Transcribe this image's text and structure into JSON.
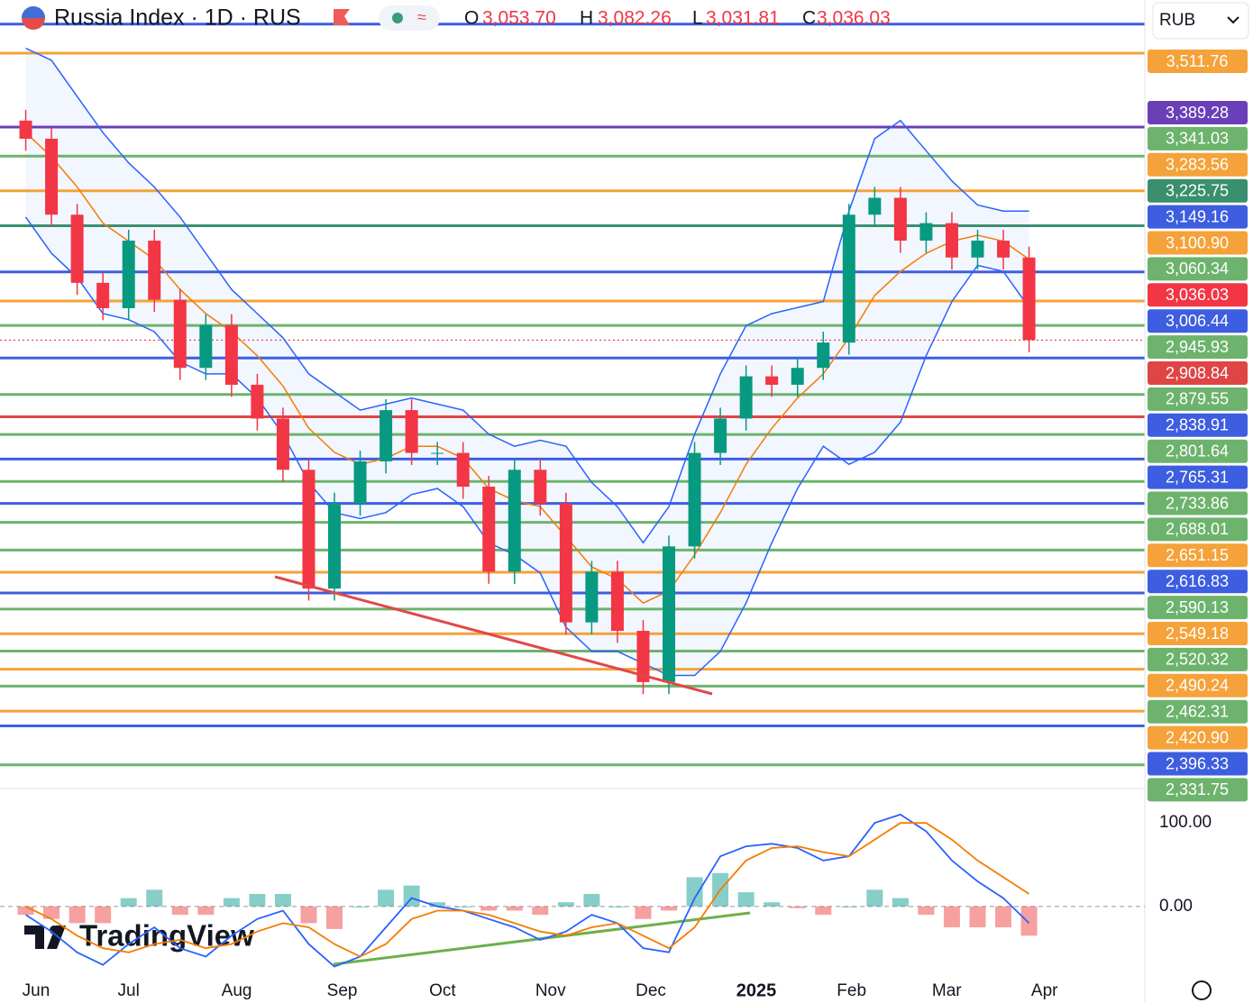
{
  "header": {
    "title": "Russia Index · 1D · RUS",
    "ohlc": [
      {
        "key": "O",
        "value": 3053.7,
        "label": "3,053.70"
      },
      {
        "key": "H",
        "value": 3082.26,
        "label": "3,082.26"
      },
      {
        "key": "L",
        "value": 3031.81,
        "label": "3,031.81"
      },
      {
        "key": "C",
        "value": 3036.03,
        "label": "3,036.03"
      }
    ],
    "currency": "RUB",
    "logo": "TradingView"
  },
  "chart_data": {
    "type": "candlestick",
    "xlim": [
      -1,
      43.5
    ],
    "xticks": [
      {
        "value": 0.4,
        "label": "Jun"
      },
      {
        "value": 4.0,
        "label": "Jul"
      },
      {
        "value": 8.2,
        "label": "Aug"
      },
      {
        "value": 12.3,
        "label": "Sep"
      },
      {
        "value": 16.2,
        "label": "Oct"
      },
      {
        "value": 20.4,
        "label": "Nov"
      },
      {
        "value": 24.3,
        "label": "Dec"
      },
      {
        "value": 28.4,
        "label": "2025"
      },
      {
        "value": 32.1,
        "label": "Feb"
      },
      {
        "value": 35.8,
        "label": "Mar"
      },
      {
        "value": 39.6,
        "label": "Apr"
      }
    ],
    "ylim": [
      2300,
      3600
    ],
    "up_color": "#089981",
    "down_color": "#f23645",
    "open": [
      3400,
      3370,
      3244,
      3131,
      3089,
      3201,
      3103,
      2990,
      3061,
      2962,
      2906,
      2821,
      2624,
      2765,
      2835,
      2920,
      2849,
      2849,
      2793,
      2652,
      2821,
      2765,
      2568,
      2652,
      2554,
      2469,
      2694,
      2849,
      2906,
      2976,
      2962,
      2990,
      3032,
      3244,
      3272,
      3201,
      3230,
      3173,
      3201,
      3173
    ],
    "high": [
      3418,
      3388,
      3262,
      3149,
      3219,
      3219,
      3121,
      3079,
      3079,
      2980,
      2924,
      2839,
      2783,
      2853,
      2938,
      2938,
      2867,
      2867,
      2811,
      2839,
      2839,
      2783,
      2670,
      2670,
      2572,
      2712,
      2867,
      2924,
      2994,
      2994,
      3008,
      3050,
      3262,
      3290,
      3290,
      3248,
      3248,
      3219,
      3219,
      3191
    ],
    "low": [
      3350,
      3224,
      3111,
      3069,
      3069,
      3083,
      2970,
      2970,
      2942,
      2886,
      2801,
      2604,
      2604,
      2745,
      2815,
      2829,
      2829,
      2773,
      2632,
      2632,
      2745,
      2548,
      2548,
      2534,
      2449,
      2449,
      2674,
      2829,
      2886,
      2942,
      2942,
      2970,
      3012,
      3224,
      3181,
      3181,
      3153,
      3153,
      3153,
      3016
    ],
    "close": [
      3370,
      3244,
      3131,
      3089,
      3201,
      3103,
      2990,
      3061,
      2962,
      2906,
      2821,
      2624,
      2765,
      2835,
      2920,
      2849,
      2849,
      2793,
      2652,
      2821,
      2765,
      2568,
      2652,
      2554,
      2469,
      2694,
      2849,
      2906,
      2976,
      2962,
      2990,
      3032,
      3244,
      3272,
      3201,
      3230,
      3173,
      3201,
      3173,
      3036
    ],
    "bands": {
      "band_color": "#2962ff",
      "basis_color": "#f57c00",
      "upper": [
        3520,
        3500,
        3440,
        3380,
        3330,
        3290,
        3240,
        3180,
        3120,
        3080,
        3040,
        2980,
        2950,
        2920,
        2930,
        2940,
        2930,
        2920,
        2880,
        2860,
        2870,
        2860,
        2800,
        2760,
        2700,
        2760,
        2880,
        2980,
        3060,
        3080,
        3090,
        3100,
        3250,
        3370,
        3400,
        3350,
        3300,
        3260,
        3250,
        3250
      ],
      "basis": [
        3380,
        3340,
        3290,
        3230,
        3200,
        3170,
        3120,
        3080,
        3050,
        3010,
        2960,
        2890,
        2850,
        2830,
        2840,
        2860,
        2860,
        2840,
        2790,
        2770,
        2760,
        2710,
        2660,
        2640,
        2600,
        2620,
        2680,
        2750,
        2830,
        2890,
        2940,
        2980,
        3040,
        3110,
        3150,
        3180,
        3200,
        3210,
        3200,
        3170
      ],
      "lower": [
        3240,
        3180,
        3140,
        3080,
        3070,
        3050,
        3000,
        2980,
        2980,
        2940,
        2880,
        2800,
        2750,
        2740,
        2750,
        2780,
        2790,
        2760,
        2700,
        2680,
        2650,
        2560,
        2520,
        2520,
        2500,
        2480,
        2480,
        2520,
        2600,
        2700,
        2790,
        2860,
        2830,
        2850,
        2900,
        3010,
        3100,
        3160,
        3150,
        3090
      ]
    },
    "levels": [
      {
        "value": 3560,
        "color": "#3d5ee0"
      },
      {
        "value": 3511.76,
        "label": "3,511.76",
        "color": "#f5a23a"
      },
      {
        "value": 3389.28,
        "label": "3,389.28",
        "color": "#6a3fb8"
      },
      {
        "value": 3341.03,
        "label": "3,341.03",
        "color": "#6db36d"
      },
      {
        "value": 3283.56,
        "label": "3,283.56",
        "color": "#f5a23a"
      },
      {
        "value": 3225.75,
        "label": "3,225.75",
        "color": "#3a8f6f"
      },
      {
        "value": 3149.16,
        "label": "3,149.16",
        "color": "#3d5ee0"
      },
      {
        "value": 3100.9,
        "label": "3,100.90",
        "color": "#f5a23a"
      },
      {
        "value": 3060.34,
        "label": "3,060.34",
        "color": "#6db36d"
      },
      {
        "value": 3036.03,
        "label": "3,036.03",
        "color": "#f23645",
        "style": "dotted"
      },
      {
        "value": 3006.44,
        "label": "3,006.44",
        "color": "#3d5ee0"
      },
      {
        "value": 2945.93,
        "label": "2,945.93",
        "color": "#6db36d"
      },
      {
        "value": 2908.84,
        "label": "2,908.84",
        "color": "#e04545"
      },
      {
        "value": 2879.55,
        "label": "2,879.55",
        "color": "#6db36d"
      },
      {
        "value": 2838.91,
        "label": "2,838.91",
        "color": "#3d5ee0"
      },
      {
        "value": 2801.64,
        "label": "2,801.64",
        "color": "#6db36d"
      },
      {
        "value": 2765.31,
        "label": "2,765.31",
        "color": "#3d5ee0"
      },
      {
        "value": 2733.86,
        "label": "2,733.86",
        "color": "#6db36d"
      },
      {
        "value": 2688.01,
        "label": "2,688.01",
        "color": "#6db36d"
      },
      {
        "value": 2651.15,
        "label": "2,651.15",
        "color": "#f5a23a"
      },
      {
        "value": 2616.83,
        "label": "2,616.83",
        "color": "#3d5ee0"
      },
      {
        "value": 2590.13,
        "label": "2,590.13",
        "color": "#6db36d"
      },
      {
        "value": 2549.18,
        "label": "2,549.18",
        "color": "#f5a23a"
      },
      {
        "value": 2520.32,
        "label": "2,520.32",
        "color": "#6db36d"
      },
      {
        "value": 2490.24,
        "label": "2,490.24",
        "color": "#f5a23a"
      },
      {
        "value": 2462.31,
        "label": "2,462.31",
        "color": "#6db36d"
      },
      {
        "value": 2420.9,
        "label": "2,420.90",
        "color": "#f5a23a"
      },
      {
        "value": 2396.33,
        "label": "2,396.33",
        "color": "#3d5ee0"
      },
      {
        "value": 2331.75,
        "label": "2,331.75",
        "color": "#6db36d"
      }
    ],
    "oscillator": {
      "ylim": [
        -80,
        125
      ],
      "yticks": [
        {
          "value": 100,
          "label": "100.00"
        },
        {
          "value": 0,
          "label": "0.00"
        }
      ],
      "series": [
        {
          "color": "#2962ff",
          "values": [
            -10,
            -30,
            -55,
            -70,
            -45,
            -25,
            -50,
            -60,
            -35,
            -15,
            -5,
            -45,
            -72,
            -60,
            -25,
            10,
            0,
            -5,
            -15,
            -25,
            -40,
            -30,
            -10,
            -20,
            -50,
            -55,
            10,
            60,
            72,
            75,
            70,
            55,
            60,
            100,
            110,
            90,
            55,
            30,
            10,
            -20
          ]
        },
        {
          "color": "#f57c00",
          "values": [
            0,
            -15,
            -35,
            -50,
            -55,
            -45,
            -40,
            -50,
            -45,
            -30,
            -20,
            -25,
            -45,
            -60,
            -45,
            -15,
            -5,
            -5,
            -10,
            -20,
            -30,
            -35,
            -25,
            -20,
            -35,
            -50,
            -25,
            20,
            55,
            70,
            72,
            65,
            60,
            80,
            100,
            100,
            80,
            55,
            35,
            15
          ]
        }
      ],
      "histogram": {
        "up_color": "#26a69a",
        "down_color": "#ef5350",
        "values": [
          -10,
          -15,
          -20,
          -20,
          10,
          20,
          -10,
          -10,
          10,
          15,
          15,
          -20,
          -27,
          0,
          20,
          25,
          5,
          0,
          -5,
          -5,
          -10,
          5,
          15,
          0,
          -15,
          -5,
          35,
          40,
          17,
          5,
          -2,
          -10,
          0,
          20,
          10,
          -10,
          -25,
          -25,
          -25,
          -35
        ]
      }
    }
  }
}
